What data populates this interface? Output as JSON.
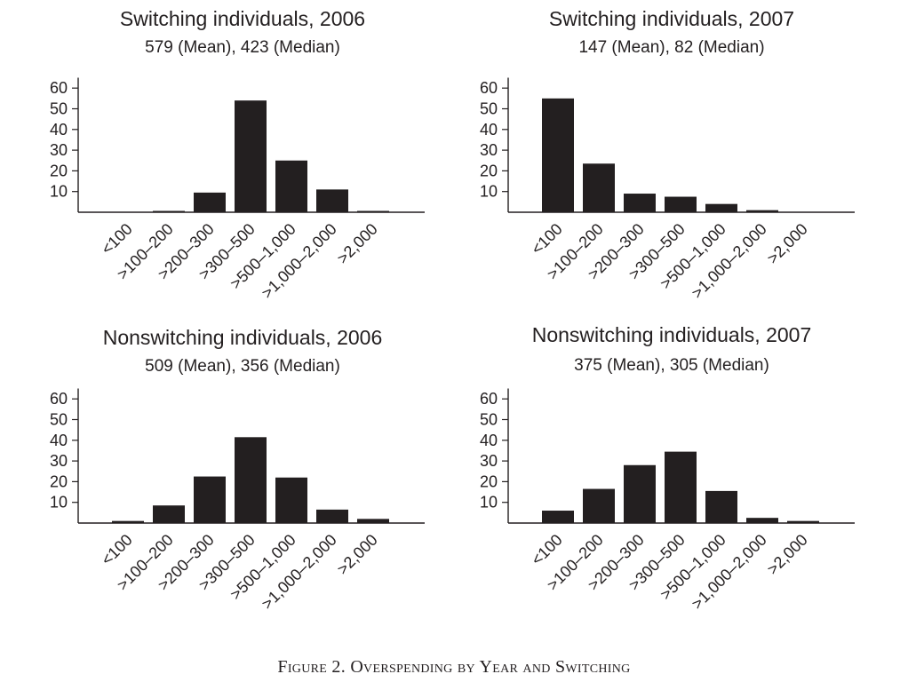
{
  "caption": "Figure 2. Overspending by Year and Switching",
  "colors": {
    "bar": "#231f20",
    "axis": "#231f20",
    "background": "#ffffff"
  },
  "chart_data": [
    {
      "type": "bar",
      "title": "Switching individuals, 2006",
      "subtitle": "579 (Mean), 423 (Median)",
      "categories": [
        "<100",
        ">100–200",
        ">200–300",
        ">300–500",
        ">500–1,000",
        ">1,000–2,000",
        ">2,000"
      ],
      "values": [
        0,
        0.5,
        9.5,
        54,
        25,
        11,
        0.5
      ],
      "yticks": [
        10,
        20,
        30,
        40,
        50,
        60
      ],
      "ylim": [
        0,
        65
      ],
      "xlabel": "",
      "ylabel": ""
    },
    {
      "type": "bar",
      "title": "Switching individuals, 2007",
      "subtitle": "147 (Mean), 82 (Median)",
      "categories": [
        "<100",
        ">100–200",
        ">200–300",
        ">300–500",
        ">500–1,000",
        ">1,000–2,000",
        ">2,000"
      ],
      "values": [
        55,
        23.5,
        9,
        7.5,
        4,
        1,
        0
      ],
      "yticks": [
        10,
        20,
        30,
        40,
        50,
        60
      ],
      "ylim": [
        0,
        65
      ],
      "xlabel": "",
      "ylabel": ""
    },
    {
      "type": "bar",
      "title": "Nonswitching individuals, 2006",
      "subtitle": "509 (Mean), 356 (Median)",
      "categories": [
        "<100",
        ">100–200",
        ">200–300",
        ">300–500",
        ">500–1,000",
        ">1,000–2,000",
        ">2,000"
      ],
      "values": [
        1,
        8.5,
        22.5,
        41.5,
        22,
        6.5,
        2
      ],
      "yticks": [
        10,
        20,
        30,
        40,
        50,
        60
      ],
      "ylim": [
        0,
        65
      ],
      "xlabel": "",
      "ylabel": ""
    },
    {
      "type": "bar",
      "title": "Nonswitching individuals, 2007",
      "subtitle": "375 (Mean), 305 (Median)",
      "categories": [
        "<100",
        ">100–200",
        ">200–300",
        ">300–500",
        ">500–1,000",
        ">1,000–2,000",
        ">2,000"
      ],
      "values": [
        6,
        16.5,
        28,
        34.5,
        15.5,
        2.5,
        1
      ],
      "yticks": [
        10,
        20,
        30,
        40,
        50,
        60
      ],
      "ylim": [
        0,
        65
      ],
      "xlabel": "",
      "ylabel": ""
    }
  ]
}
